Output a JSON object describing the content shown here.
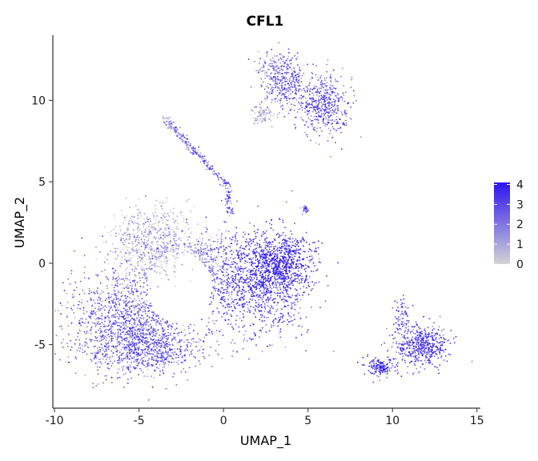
{
  "chart_data": {
    "type": "scatter",
    "title": "CFL1",
    "xlabel": "UMAP_1",
    "ylabel": "UMAP_2",
    "xlim": [
      -10.1,
      15.2
    ],
    "ylim": [
      -8.9,
      14.0
    ],
    "xticks": [
      -10,
      -5,
      0,
      5,
      10,
      15
    ],
    "xtick_labels": [
      "-10",
      "-5",
      "0",
      "5",
      "10",
      "15"
    ],
    "yticks": [
      -5,
      0,
      5,
      10
    ],
    "ytick_labels": [
      "-5",
      "0",
      "5",
      "10"
    ],
    "grid": false,
    "legend": {
      "position": "right",
      "min": 0,
      "max": 4.1,
      "ticks": [
        0,
        1,
        2,
        3,
        4
      ],
      "tick_labels": [
        "0",
        "1",
        "2",
        "3",
        "4"
      ],
      "low_color": "#d3d3d3",
      "high_color": "#2a14f2"
    },
    "clusters": [
      {
        "name": "large-left-lobe",
        "x": -5.5,
        "y": -3.5,
        "sx": 1.9,
        "sy": 1.6,
        "n": 1400,
        "expr": 2.3
      },
      {
        "name": "left-lobe-bottom",
        "x": -4.5,
        "y": -5.3,
        "sx": 1.6,
        "sy": 0.7,
        "n": 500,
        "expr": 2.5
      },
      {
        "name": "upper-left-pale",
        "x": -4.3,
        "y": 1.3,
        "sx": 1.1,
        "sy": 1.1,
        "n": 650,
        "expr": 0.7
      },
      {
        "name": "center-bridge",
        "x": -1.5,
        "y": 0.4,
        "sx": 1.1,
        "sy": 0.6,
        "n": 350,
        "expr": 1.2
      },
      {
        "name": "central-mass",
        "x": 1.8,
        "y": -1.2,
        "sx": 1.5,
        "sy": 1.6,
        "n": 1200,
        "expr": 3.0
      },
      {
        "name": "central-right-bright",
        "x": 3.5,
        "y": 0.0,
        "sx": 0.9,
        "sy": 0.9,
        "n": 600,
        "expr": 3.6
      },
      {
        "name": "top-left-lobe",
        "x": 3.5,
        "y": 11.2,
        "sx": 0.7,
        "sy": 0.8,
        "n": 420,
        "expr": 2.2
      },
      {
        "name": "top-right-lobe",
        "x": 5.8,
        "y": 9.7,
        "sx": 0.8,
        "sy": 0.9,
        "n": 500,
        "expr": 2.4
      },
      {
        "name": "top-pale-patch",
        "x": 2.3,
        "y": 9.1,
        "sx": 0.3,
        "sy": 0.3,
        "n": 90,
        "expr": 0.3
      },
      {
        "name": "bottom-right-main",
        "x": 11.7,
        "y": -5.1,
        "sx": 0.8,
        "sy": 0.6,
        "n": 500,
        "expr": 2.8
      },
      {
        "name": "bottom-right-left",
        "x": 9.3,
        "y": -6.4,
        "sx": 0.5,
        "sy": 0.3,
        "n": 160,
        "expr": 3.1
      },
      {
        "name": "bottom-right-spur",
        "x": 10.5,
        "y": -3.3,
        "sx": 0.3,
        "sy": 0.7,
        "n": 80,
        "expr": 2.8
      },
      {
        "name": "small-isolate",
        "x": 4.8,
        "y": 3.3,
        "sx": 0.12,
        "sy": 0.12,
        "n": 25,
        "expr": 2.5
      }
    ],
    "streams": [
      {
        "name": "diagonal-filament",
        "from": [
          -3.5,
          8.9
        ],
        "to": [
          0.2,
          4.8
        ],
        "n": 220,
        "expr": 1.8
      },
      {
        "name": "filament-tail",
        "from": [
          0.2,
          5.0
        ],
        "to": [
          0.4,
          2.9
        ],
        "n": 60,
        "expr": 2.4
      }
    ]
  }
}
